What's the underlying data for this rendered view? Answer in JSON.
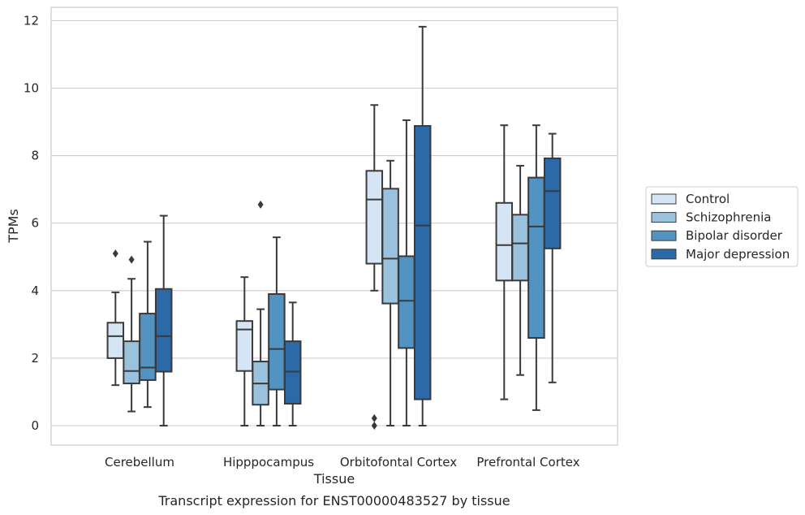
{
  "chart_data": {
    "type": "box",
    "title": "",
    "caption": "Transcript expression for ENST00000483527 by tissue",
    "xlabel": "Tissue",
    "ylabel": "TPMs",
    "ylim": [
      -0.55,
      12.4
    ],
    "yticks": [
      0,
      2,
      4,
      6,
      8,
      10,
      12
    ],
    "grid": "horizontal",
    "legend_position": "right",
    "categories": [
      "Cerebellum",
      "Hipppocampus",
      "Orbitofontal Cortex",
      "Prefrontal Cortex"
    ],
    "series": [
      {
        "name": "Control",
        "color": "#d6e5f4",
        "boxes": [
          {
            "whisker_low": 1.2,
            "q1": 2.0,
            "median": 2.65,
            "q3": 3.05,
            "whisker_high": 3.95,
            "outliers": [
              5.1
            ]
          },
          {
            "whisker_low": 0.0,
            "q1": 1.62,
            "median": 2.85,
            "q3": 3.1,
            "whisker_high": 4.4,
            "outliers": []
          },
          {
            "whisker_low": 4.0,
            "q1": 4.8,
            "median": 6.7,
            "q3": 7.55,
            "whisker_high": 9.5,
            "outliers": [
              0.0,
              0.22
            ]
          },
          {
            "whisker_low": 0.78,
            "q1": 4.3,
            "median": 5.35,
            "q3": 6.6,
            "whisker_high": 8.9,
            "outliers": []
          }
        ]
      },
      {
        "name": "Schizophrenia",
        "color": "#9ac2dc",
        "boxes": [
          {
            "whisker_low": 0.42,
            "q1": 1.25,
            "median": 1.62,
            "q3": 2.5,
            "whisker_high": 4.35,
            "outliers": [
              4.92
            ]
          },
          {
            "whisker_low": 0.0,
            "q1": 0.62,
            "median": 1.25,
            "q3": 1.9,
            "whisker_high": 3.45,
            "outliers": [
              6.55
            ]
          },
          {
            "whisker_low": 0.0,
            "q1": 3.62,
            "median": 4.95,
            "q3": 7.02,
            "whisker_high": 7.85,
            "outliers": []
          },
          {
            "whisker_low": 1.5,
            "q1": 4.3,
            "median": 5.4,
            "q3": 6.25,
            "whisker_high": 7.7,
            "outliers": []
          }
        ]
      },
      {
        "name": "Bipolar disorder",
        "color": "#5393c1",
        "boxes": [
          {
            "whisker_low": 0.55,
            "q1": 1.35,
            "median": 1.72,
            "q3": 3.32,
            "whisker_high": 5.45,
            "outliers": []
          },
          {
            "whisker_low": 0.0,
            "q1": 1.07,
            "median": 2.27,
            "q3": 3.9,
            "whisker_high": 5.58,
            "outliers": []
          },
          {
            "whisker_low": 0.0,
            "q1": 2.3,
            "median": 3.7,
            "q3": 5.02,
            "whisker_high": 9.05,
            "outliers": []
          },
          {
            "whisker_low": 0.46,
            "q1": 2.6,
            "median": 5.9,
            "q3": 7.35,
            "whisker_high": 8.9,
            "outliers": []
          }
        ]
      },
      {
        "name": "Major depression",
        "color": "#2b69a9",
        "boxes": [
          {
            "whisker_low": 0.0,
            "q1": 1.6,
            "median": 2.65,
            "q3": 4.05,
            "whisker_high": 6.22,
            "outliers": []
          },
          {
            "whisker_low": 0.0,
            "q1": 0.65,
            "median": 1.6,
            "q3": 2.5,
            "whisker_high": 3.65,
            "outliers": []
          },
          {
            "whisker_low": 0.0,
            "q1": 0.78,
            "median": 5.93,
            "q3": 8.88,
            "whisker_high": 11.82,
            "outliers": []
          },
          {
            "whisker_low": 1.28,
            "q1": 5.25,
            "median": 6.95,
            "q3": 7.92,
            "whisker_high": 8.65,
            "outliers": []
          }
        ]
      }
    ]
  }
}
